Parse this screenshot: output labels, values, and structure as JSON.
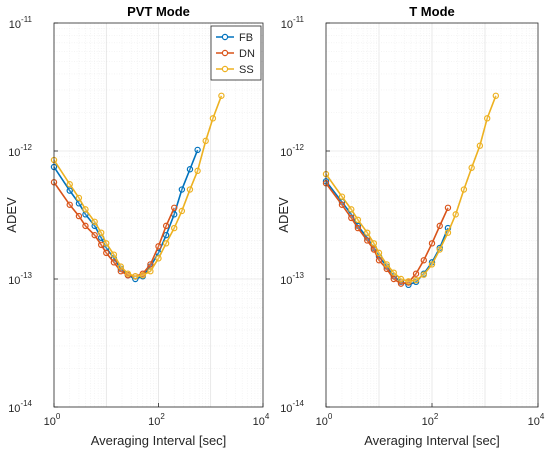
{
  "chart_data": [
    {
      "type": "line",
      "title": "PVT Mode",
      "xlabel": "Averaging Interval [sec]",
      "ylabel": "ADEV",
      "xscale": "log",
      "yscale": "log",
      "xlim": [
        1,
        10000
      ],
      "ylim": [
        1e-14,
        1e-11
      ],
      "x_ticks": [
        {
          "base": "10",
          "exp": "0"
        },
        {
          "base": "10",
          "exp": "2"
        },
        {
          "base": "10",
          "exp": "4"
        }
      ],
      "y_ticks": [
        {
          "base": "10",
          "exp": "-14"
        },
        {
          "base": "10",
          "exp": "-13"
        },
        {
          "base": "10",
          "exp": "-12"
        },
        {
          "base": "10",
          "exp": "-11"
        }
      ],
      "grid": true,
      "legend": "top-right",
      "series": [
        {
          "name": "FB",
          "color": "#0072BD",
          "x": [
            1,
            2,
            3,
            4,
            6,
            8,
            10,
            14,
            19,
            26,
            36,
            50,
            70,
            100,
            140,
            200,
            280,
            400,
            560
          ],
          "y": [
            7.5e-13,
            4.9e-13,
            3.9e-13,
            3.2e-13,
            2.6e-13,
            2.1e-13,
            1.75e-13,
            1.45e-13,
            1.2e-13,
            1.07e-13,
            1e-13,
            1.05e-13,
            1.25e-13,
            1.6e-13,
            2.2e-13,
            3.2e-13,
            5e-13,
            7.2e-13,
            1.02e-12
          ]
        },
        {
          "name": "DN",
          "color": "#D95319",
          "x": [
            1,
            2,
            3,
            4,
            6,
            8,
            10,
            14,
            19,
            26,
            36,
            50,
            70,
            100,
            140,
            200
          ],
          "y": [
            5.7e-13,
            3.8e-13,
            3.1e-13,
            2.6e-13,
            2.2e-13,
            1.85e-13,
            1.6e-13,
            1.35e-13,
            1.15e-13,
            1.07e-13,
            1.05e-13,
            1.1e-13,
            1.3e-13,
            1.8e-13,
            2.6e-13,
            3.6e-13
          ]
        },
        {
          "name": "SS",
          "color": "#EDB120",
          "x": [
            1,
            2,
            3,
            4,
            6,
            8,
            10,
            14,
            19,
            26,
            36,
            50,
            70,
            100,
            140,
            200,
            280,
            400,
            560,
            800,
            1100,
            1600
          ],
          "y": [
            8.5e-13,
            5.5e-13,
            4.3e-13,
            3.5e-13,
            2.8e-13,
            2.3e-13,
            1.9e-13,
            1.55e-13,
            1.25e-13,
            1.1e-13,
            1.05e-13,
            1.07e-13,
            1.15e-13,
            1.45e-13,
            1.9e-13,
            2.5e-13,
            3.4e-13,
            5e-13,
            7e-13,
            1.2e-12,
            1.8e-12,
            2.7e-12
          ]
        }
      ]
    },
    {
      "type": "line",
      "title": "T Mode",
      "xlabel": "Averaging Interval [sec]",
      "ylabel": "ADEV",
      "xscale": "log",
      "yscale": "log",
      "xlim": [
        1,
        10000
      ],
      "ylim": [
        1e-14,
        1e-11
      ],
      "x_ticks": [
        {
          "base": "10",
          "exp": "0"
        },
        {
          "base": "10",
          "exp": "2"
        },
        {
          "base": "10",
          "exp": "4"
        }
      ],
      "y_ticks": [
        {
          "base": "10",
          "exp": "-14"
        },
        {
          "base": "10",
          "exp": "-13"
        },
        {
          "base": "10",
          "exp": "-12"
        },
        {
          "base": "10",
          "exp": "-11"
        }
      ],
      "grid": true,
      "series": [
        {
          "name": "FB",
          "color": "#0072BD",
          "x": [
            1,
            2,
            3,
            4,
            6,
            8,
            10,
            14,
            19,
            26,
            36,
            50,
            70,
            100,
            140,
            200
          ],
          "y": [
            5.8e-13,
            4e-13,
            3.2e-13,
            2.6e-13,
            2.1e-13,
            1.75e-13,
            1.5e-13,
            1.25e-13,
            1.05e-13,
            9.5e-14,
            9e-14,
            9.5e-14,
            1.1e-13,
            1.35e-13,
            1.75e-13,
            2.5e-13
          ]
        },
        {
          "name": "DN",
          "color": "#D95319",
          "x": [
            1,
            2,
            3,
            4,
            6,
            8,
            10,
            14,
            19,
            26,
            36,
            50,
            70,
            100,
            140,
            200
          ],
          "y": [
            5.6e-13,
            3.8e-13,
            3e-13,
            2.5e-13,
            2e-13,
            1.7e-13,
            1.4e-13,
            1.2e-13,
            1e-13,
            9.2e-14,
            9.4e-14,
            1.1e-13,
            1.4e-13,
            1.9e-13,
            2.6e-13,
            3.6e-13
          ]
        },
        {
          "name": "SS",
          "color": "#EDB120",
          "x": [
            1,
            2,
            3,
            4,
            6,
            8,
            10,
            14,
            19,
            26,
            36,
            50,
            70,
            100,
            140,
            200,
            280,
            400,
            560,
            800,
            1100,
            1600
          ],
          "y": [
            6.6e-13,
            4.4e-13,
            3.5e-13,
            2.9e-13,
            2.3e-13,
            1.9e-13,
            1.6e-13,
            1.3e-13,
            1.12e-13,
            1e-13,
            9.6e-14,
            9.8e-14,
            1.08e-13,
            1.3e-13,
            1.7e-13,
            2.3e-13,
            3.2e-13,
            5e-13,
            7.4e-13,
            1.1e-12,
            1.8e-12,
            2.7e-12
          ]
        }
      ]
    }
  ]
}
